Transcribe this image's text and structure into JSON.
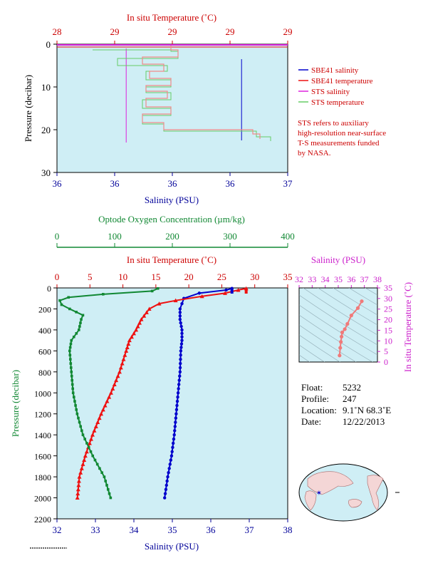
{
  "top_panel": {
    "temp_title": "In situ Temperature (˚C)",
    "temp_ticks": [
      "28",
      "29",
      "29",
      "29",
      "29"
    ],
    "sal_title": "Salinity (PSU)",
    "sal_ticks": [
      "36",
      "36",
      "36",
      "36",
      "37"
    ],
    "y_label": "Pressure (decibar)",
    "y_ticks": [
      "0",
      "10",
      "20",
      "30"
    ],
    "legend": [
      "SBE41 salinity",
      "SBE41 temperature",
      "STS salinity",
      "STS temperature"
    ],
    "note": [
      "STS refers to auxiliary",
      "high-resolution near-surface",
      "T-S measurements funded",
      "by NASA."
    ]
  },
  "bottom_panel": {
    "oxy_title": "Optode Oxygen Concentration (µm/kg)",
    "oxy_ticks": [
      "0",
      "100",
      "200",
      "300",
      "400"
    ],
    "temp_title": "In situ Temperature (˚C)",
    "temp_ticks": [
      "0",
      "5",
      "10",
      "15",
      "20",
      "25",
      "30",
      "35"
    ],
    "sal_title": "Salinity (PSU)",
    "sal_ticks": [
      "32",
      "33",
      "34",
      "35",
      "36",
      "37",
      "38"
    ],
    "y_label": "Pressure (decibar)",
    "y_ticks": [
      "0",
      "200",
      "400",
      "600",
      "800",
      "1000",
      "1200",
      "1400",
      "1600",
      "1800",
      "2000",
      "2200"
    ]
  },
  "ts_panel": {
    "title": "Salinity (PSU)",
    "sal_ticks": [
      "32",
      "33",
      "34",
      "35",
      "36",
      "37",
      "38"
    ],
    "y_label": "In situ Temperature (˚C)",
    "y_ticks": [
      "0",
      "5",
      "10",
      "15",
      "20",
      "25",
      "30",
      "35"
    ]
  },
  "float_info": {
    "float_label": "Float:",
    "float_value": "5232",
    "profile_label": "Profile:",
    "profile_value": "247",
    "location_label": "Location:",
    "location_value": "9.1˚N  68.3˚E",
    "date_label": "Date:",
    "date_value": "12/22/2013"
  },
  "colors": {
    "panel_bg": "#cfeef5",
    "salinity": "#0000cc",
    "temperature": "#ee1111",
    "sts_salinity": "#dd22dd",
    "sts_temperature": "#66cc66",
    "oxygen": "#118833",
    "axis_temp": "#cc0000",
    "axis_sal": "#000099",
    "axis_ts": "#cc22cc"
  },
  "chart_data": [
    {
      "type": "line",
      "title": "",
      "xlabel": "Salinity (PSU) / In situ Temperature (˚C)",
      "ylabel": "Pressure (decibar)",
      "xlim_salinity": [
        36,
        37
      ],
      "ylim": [
        0,
        30
      ],
      "y_reversed": true,
      "series": [
        {
          "name": "SBE41 salinity",
          "x": [
            36.8,
            36.8,
            36.8,
            36.8
          ],
          "y": [
            3.5,
            10,
            18,
            22.5
          ]
        },
        {
          "name": "STS salinity",
          "x": [
            36.3,
            36.3,
            36.3,
            36.3,
            36.3
          ],
          "y": [
            1,
            5,
            12,
            18,
            23
          ]
        },
        {
          "name": "SBE41 temperature",
          "pressure": [
            2,
            4,
            5,
            6,
            7,
            8,
            9,
            10,
            12,
            14,
            15,
            17,
            19,
            20,
            21,
            22,
            22.5
          ]
        },
        {
          "name": "STS temperature",
          "pressure": [
            1,
            2,
            4,
            5,
            6,
            7,
            8,
            9,
            10,
            12,
            14,
            15,
            17,
            19,
            20,
            21,
            22,
            23
          ]
        }
      ]
    },
    {
      "type": "line",
      "title": "",
      "ylabel": "Pressure (decibar)",
      "ylim": [
        0,
        2200
      ],
      "y_reversed": true,
      "series": [
        {
          "name": "Salinity (PSU)",
          "pressure": [
            5,
            20,
            50,
            100,
            150,
            200,
            300,
            400,
            500,
            600,
            800,
            1000,
            1200,
            1400,
            1600,
            1800,
            2000
          ],
          "values": [
            36.55,
            36.4,
            35.7,
            35.3,
            35.25,
            35.2,
            35.2,
            35.25,
            35.25,
            35.22,
            35.2,
            35.15,
            35.1,
            35.05,
            34.98,
            34.88,
            34.8
          ]
        },
        {
          "name": "In situ Temperature (˚C)",
          "pressure": [
            5,
            20,
            50,
            80,
            120,
            150,
            200,
            300,
            400,
            500,
            600,
            800,
            1000,
            1200,
            1400,
            1600,
            1800,
            2000
          ],
          "values": [
            28.7,
            27.5,
            25.5,
            22,
            18,
            15.5,
            14,
            12.8,
            12,
            11,
            10.5,
            9.5,
            8.2,
            6.7,
            5.4,
            4.3,
            3.4,
            3.1
          ]
        },
        {
          "name": "Optode Oxygen Concentration (µm/kg)",
          "pressure": [
            5,
            30,
            60,
            90,
            120,
            160,
            200,
            260,
            300,
            400,
            500,
            600,
            800,
            1000,
            1200,
            1400,
            1600,
            1800,
            2000
          ],
          "values": [
            175,
            165,
            80,
            20,
            5,
            8,
            22,
            45,
            42,
            38,
            25,
            22,
            25,
            28,
            35,
            45,
            62,
            82,
            93
          ]
        }
      ]
    },
    {
      "type": "line",
      "title": "Salinity (PSU)",
      "xlabel": "Salinity (PSU)",
      "ylabel": "In situ Temperature (˚C)",
      "xlim": [
        32,
        38
      ],
      "ylim": [
        0,
        35
      ],
      "series": [
        {
          "name": "T-S",
          "x": [
            35.1,
            35.15,
            35.2,
            35.25,
            35.3,
            35.5,
            35.7,
            36.0,
            36.5,
            36.8
          ],
          "y": [
            3.1,
            6.7,
            9.5,
            12,
            14,
            15.5,
            18,
            22,
            25.5,
            28.7
          ]
        }
      ]
    }
  ]
}
